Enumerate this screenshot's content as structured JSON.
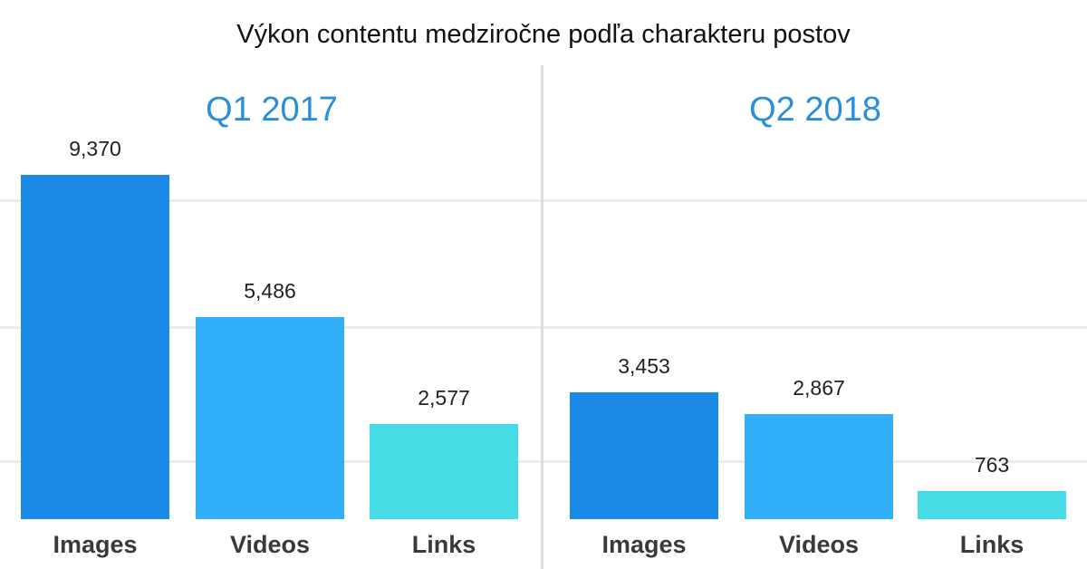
{
  "title": "Výkon contentu medziročne podľa charakteru postov",
  "colors": {
    "images": "#1a8ae6",
    "videos": "#31aff8",
    "links": "#45dce6",
    "panel_title": "#2a8fdb"
  },
  "chart_data": [
    {
      "type": "bar",
      "title": "Q1 2017",
      "categories": [
        "Images",
        "Videos",
        "Links"
      ],
      "values": [
        9370,
        5486,
        2577
      ],
      "value_labels": [
        "9,370",
        "5,486",
        "2,577"
      ],
      "ylim": [
        0,
        10000
      ],
      "grid": true
    },
    {
      "type": "bar",
      "title": "Q2 2018",
      "categories": [
        "Images",
        "Videos",
        "Links"
      ],
      "values": [
        3453,
        2867,
        763
      ],
      "value_labels": [
        "3,453",
        "2,867",
        "763"
      ],
      "ylim": [
        0,
        10000
      ],
      "grid": true
    }
  ]
}
